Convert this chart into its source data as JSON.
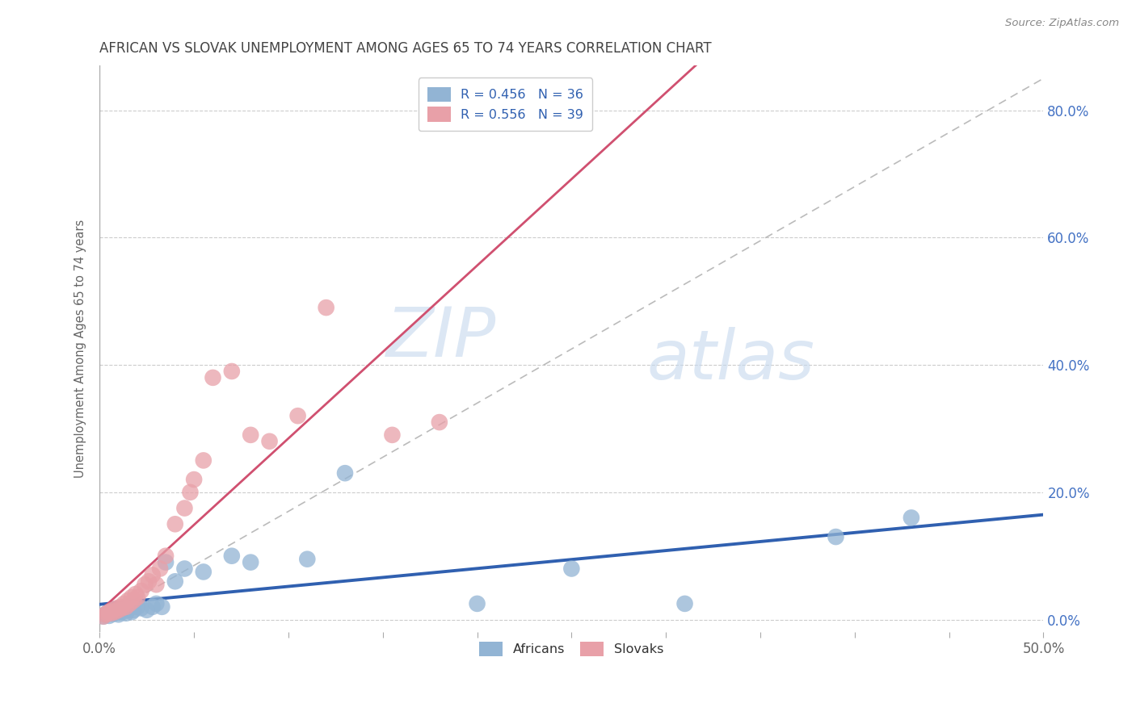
{
  "title": "AFRICAN VS SLOVAK UNEMPLOYMENT AMONG AGES 65 TO 74 YEARS CORRELATION CHART",
  "source": "Source: ZipAtlas.com",
  "ylabel": "Unemployment Among Ages 65 to 74 years",
  "xlim": [
    0.0,
    0.5
  ],
  "ylim": [
    -0.02,
    0.87
  ],
  "xticks": [
    0.0,
    0.05,
    0.1,
    0.15,
    0.2,
    0.25,
    0.3,
    0.35,
    0.4,
    0.45,
    0.5
  ],
  "xtick_labels_show": [
    "0.0%",
    "",
    "",
    "",
    "",
    "",
    "",
    "",
    "",
    "",
    "50.0%"
  ],
  "yticks": [
    0.0,
    0.2,
    0.4,
    0.6,
    0.8
  ],
  "ytick_labels": [
    "0.0%",
    "20.0%",
    "40.0%",
    "60.0%",
    "80.0%"
  ],
  "african_color": "#92b4d4",
  "slovak_color": "#e8a0a8",
  "african_R": 0.456,
  "african_N": 36,
  "slovak_R": 0.556,
  "slovak_N": 39,
  "watermark_zip": "ZIP",
  "watermark_atlas": "atlas",
  "african_line_color": "#3060b0",
  "slovak_line_color": "#d05070",
  "ref_line_color": "#bbbbbb",
  "african_x": [
    0.002,
    0.003,
    0.004,
    0.005,
    0.006,
    0.007,
    0.008,
    0.009,
    0.01,
    0.011,
    0.012,
    0.013,
    0.014,
    0.015,
    0.016,
    0.017,
    0.018,
    0.02,
    0.022,
    0.025,
    0.028,
    0.03,
    0.033,
    0.035,
    0.04,
    0.045,
    0.055,
    0.07,
    0.08,
    0.11,
    0.13,
    0.2,
    0.25,
    0.31,
    0.39,
    0.43
  ],
  "african_y": [
    0.005,
    0.008,
    0.01,
    0.006,
    0.012,
    0.009,
    0.015,
    0.011,
    0.008,
    0.014,
    0.012,
    0.018,
    0.01,
    0.015,
    0.02,
    0.012,
    0.015,
    0.02,
    0.018,
    0.015,
    0.02,
    0.025,
    0.02,
    0.09,
    0.06,
    0.08,
    0.075,
    0.1,
    0.09,
    0.095,
    0.23,
    0.025,
    0.08,
    0.025,
    0.13,
    0.16
  ],
  "slovak_x": [
    0.002,
    0.003,
    0.004,
    0.005,
    0.006,
    0.007,
    0.008,
    0.009,
    0.01,
    0.011,
    0.012,
    0.013,
    0.014,
    0.015,
    0.016,
    0.017,
    0.018,
    0.019,
    0.02,
    0.022,
    0.024,
    0.026,
    0.028,
    0.03,
    0.032,
    0.035,
    0.04,
    0.045,
    0.048,
    0.05,
    0.055,
    0.06,
    0.07,
    0.08,
    0.09,
    0.105,
    0.12,
    0.155,
    0.18
  ],
  "slovak_y": [
    0.005,
    0.008,
    0.01,
    0.012,
    0.01,
    0.015,
    0.012,
    0.018,
    0.015,
    0.02,
    0.018,
    0.025,
    0.02,
    0.03,
    0.025,
    0.035,
    0.03,
    0.04,
    0.035,
    0.045,
    0.055,
    0.06,
    0.07,
    0.055,
    0.08,
    0.1,
    0.15,
    0.175,
    0.2,
    0.22,
    0.25,
    0.38,
    0.39,
    0.29,
    0.28,
    0.32,
    0.49,
    0.29,
    0.31
  ],
  "background_color": "#ffffff",
  "grid_color": "#cccccc",
  "title_color": "#444444",
  "axis_color": "#666666"
}
